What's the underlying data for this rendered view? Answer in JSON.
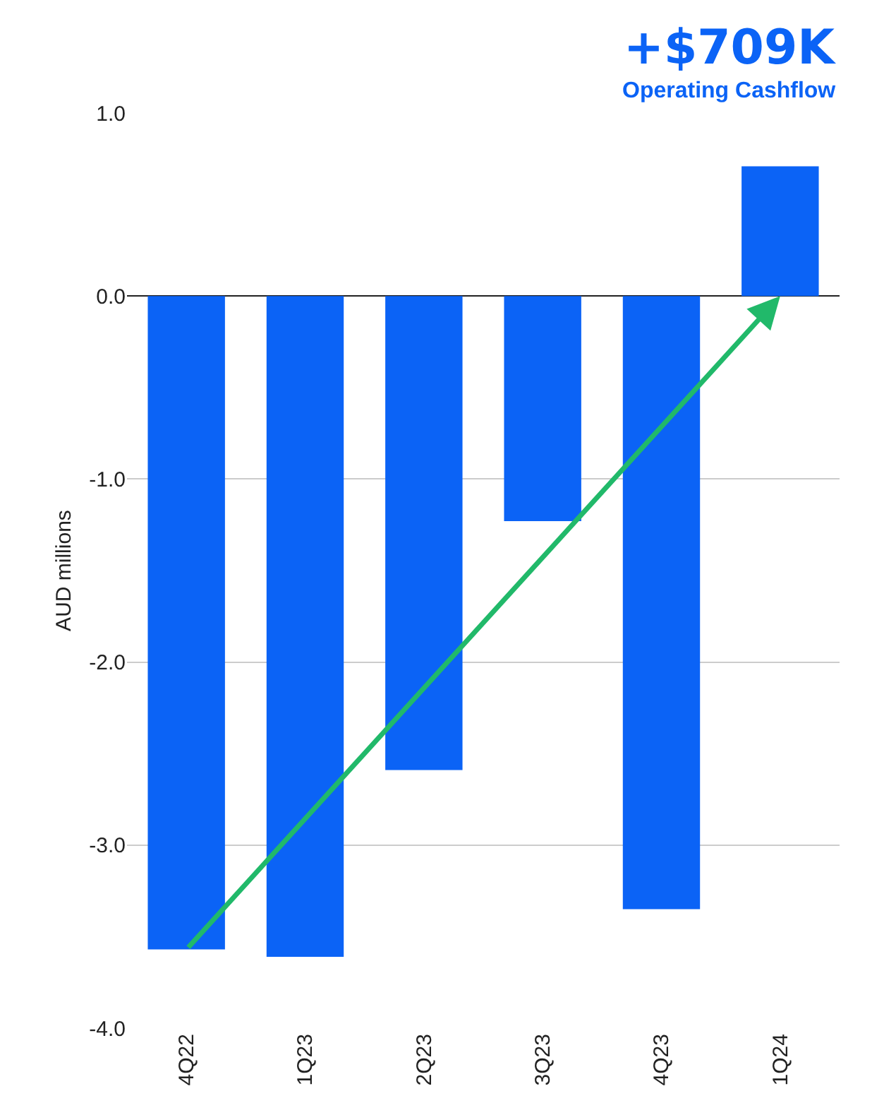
{
  "chart_data": {
    "type": "bar",
    "title": "+$709K",
    "subtitle": "Operating Cashflow",
    "ylabel": "AUD millions",
    "categories": [
      "4Q22",
      "1Q23",
      "2Q23",
      "3Q23",
      "4Q23",
      "1Q24"
    ],
    "values": [
      -3.57,
      -3.61,
      -2.59,
      -1.23,
      -3.35,
      0.709
    ],
    "color": "#0b63f6",
    "ylim": [
      -4,
      1
    ],
    "yticks": [
      {
        "value": -4,
        "label": "-4.0"
      },
      {
        "value": -3,
        "label": "-3.0"
      },
      {
        "value": -2,
        "label": "-2.0"
      },
      {
        "value": -1,
        "label": "-1.0"
      },
      {
        "value": 0,
        "label": "0.0"
      },
      {
        "value": 1,
        "label": "1.0"
      }
    ],
    "grid": "y",
    "legend": false
  }
}
